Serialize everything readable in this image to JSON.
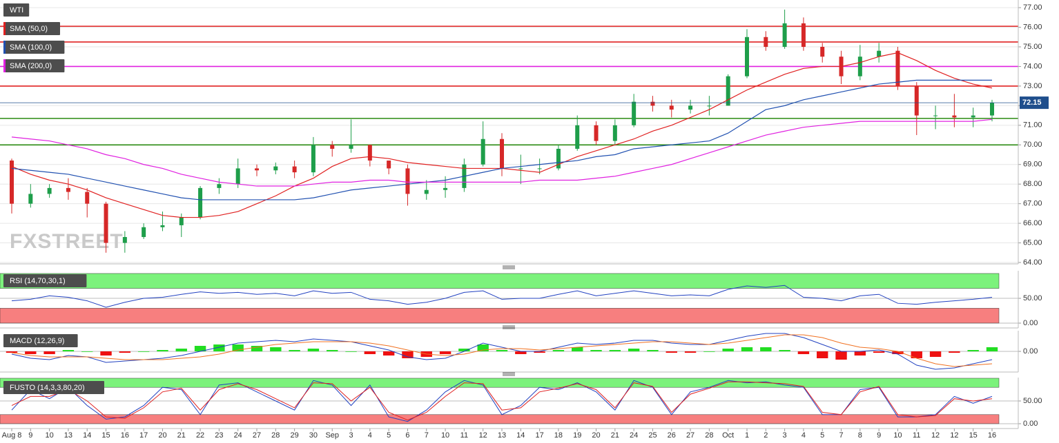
{
  "chart_data": [
    {
      "type": "candlestick",
      "title": "WTI",
      "watermark": "FXSTREET",
      "categories": [
        "Aug 8",
        "9",
        "10",
        "13",
        "14",
        "15",
        "16",
        "17",
        "20",
        "21",
        "22",
        "23",
        "24",
        "27",
        "28",
        "29",
        "30",
        "Sep",
        "3",
        "4",
        "5",
        "6",
        "7",
        "10",
        "11",
        "12",
        "13",
        "14",
        "17",
        "18",
        "19",
        "20",
        "21",
        "24",
        "25",
        "26",
        "27",
        "28",
        "Oct",
        "1",
        "2",
        "3",
        "4",
        "5",
        "7",
        "8",
        "9",
        "10",
        "11",
        "12",
        "12",
        "15",
        "16"
      ],
      "open": [
        69.2,
        67.0,
        67.5,
        67.8,
        67.6,
        67.0,
        65.0,
        65.3,
        65.8,
        65.9,
        66.3,
        67.8,
        68.0,
        68.8,
        68.7,
        68.9,
        68.6,
        70.0,
        69.8,
        70.0,
        69.2,
        68.8,
        67.5,
        67.7,
        67.8,
        69.0,
        70.3,
        68.8,
        68.8,
        68.8,
        69.8,
        71.0,
        70.2,
        71.0,
        72.2,
        72.0,
        71.8,
        72.0,
        72.0,
        73.5,
        75.5,
        75.0,
        76.2,
        75.0,
        74.5,
        73.5,
        74.5,
        74.8,
        73.0,
        71.5,
        71.5,
        71.4,
        71.5
      ],
      "high": [
        69.3,
        68.0,
        68.0,
        68.3,
        67.8,
        67.1,
        65.6,
        66.0,
        66.6,
        66.5,
        67.9,
        68.3,
        69.3,
        69.0,
        69.1,
        69.2,
        70.4,
        70.2,
        71.3,
        70.0,
        69.2,
        69.0,
        68.2,
        68.4,
        69.3,
        71.2,
        70.6,
        69.5,
        69.3,
        70.0,
        71.5,
        71.2,
        71.3,
        72.6,
        72.5,
        72.3,
        72.3,
        72.5,
        73.6,
        75.9,
        75.8,
        76.9,
        76.5,
        75.2,
        74.8,
        75.1,
        75.2,
        75.0,
        73.2,
        72.0,
        72.6,
        71.9,
        72.3
      ],
      "low": [
        66.5,
        66.8,
        67.3,
        67.2,
        66.3,
        64.5,
        64.5,
        65.2,
        65.6,
        65.3,
        66.2,
        67.5,
        67.8,
        68.4,
        68.5,
        68.3,
        68.4,
        69.4,
        69.6,
        68.9,
        68.5,
        66.9,
        67.2,
        67.3,
        67.6,
        68.9,
        68.4,
        68.0,
        68.5,
        68.7,
        69.7,
        70.0,
        70.0,
        70.9,
        71.7,
        71.4,
        71.6,
        71.5,
        72.0,
        73.4,
        74.8,
        74.9,
        74.8,
        74.2,
        73.1,
        73.3,
        74.2,
        72.8,
        70.5,
        70.8,
        70.9,
        70.9,
        71.2
      ],
      "close": [
        67.0,
        67.5,
        67.8,
        67.6,
        67.0,
        65.0,
        65.3,
        65.8,
        65.9,
        66.3,
        67.8,
        68.0,
        68.8,
        68.7,
        68.9,
        68.6,
        70.0,
        69.8,
        70.0,
        69.2,
        68.8,
        67.5,
        67.7,
        67.8,
        69.0,
        70.3,
        68.8,
        68.8,
        68.8,
        69.8,
        71.0,
        70.2,
        71.0,
        72.2,
        72.0,
        71.8,
        72.0,
        72.0,
        73.5,
        75.5,
        75.0,
        76.2,
        75.0,
        74.5,
        73.5,
        74.5,
        74.8,
        73.0,
        71.5,
        71.5,
        71.4,
        71.5,
        72.15
      ],
      "up_color": "#1e9e4a",
      "down_color": "#d62828",
      "series": [
        {
          "name": "SMA (50,0)",
          "color": "#e02020",
          "values": [
            68.9,
            68.5,
            68.2,
            68.0,
            67.7,
            67.3,
            67.0,
            66.7,
            66.4,
            66.3,
            66.3,
            66.4,
            66.6,
            67.0,
            67.4,
            67.9,
            68.3,
            68.9,
            69.3,
            69.4,
            69.3,
            69.1,
            69.0,
            68.9,
            68.8,
            68.8,
            68.8,
            68.7,
            68.6,
            69.0,
            69.4,
            69.7,
            70.0,
            70.3,
            70.7,
            71.0,
            71.4,
            71.8,
            72.3,
            72.8,
            73.2,
            73.6,
            73.9,
            74.0,
            74.0,
            74.2,
            74.5,
            74.7,
            74.3,
            73.8,
            73.4,
            73.1,
            72.9
          ]
        },
        {
          "name": "SMA (100,0)",
          "color": "#2050b0",
          "values": [
            68.8,
            68.7,
            68.6,
            68.5,
            68.3,
            68.1,
            67.9,
            67.7,
            67.5,
            67.3,
            67.2,
            67.2,
            67.2,
            67.2,
            67.2,
            67.2,
            67.3,
            67.5,
            67.7,
            67.8,
            67.9,
            68.0,
            68.1,
            68.2,
            68.4,
            68.6,
            68.8,
            68.9,
            69.0,
            69.1,
            69.2,
            69.4,
            69.5,
            69.8,
            69.9,
            70.0,
            70.1,
            70.2,
            70.6,
            71.2,
            71.8,
            72.0,
            72.3,
            72.5,
            72.7,
            72.9,
            73.1,
            73.2,
            73.3,
            73.3,
            73.3,
            73.3,
            73.3
          ]
        },
        {
          "name": "SMA (200,0)",
          "color": "#e020e0",
          "values": [
            70.4,
            70.3,
            70.2,
            70.0,
            69.8,
            69.5,
            69.3,
            69.0,
            68.8,
            68.5,
            68.3,
            68.1,
            68.0,
            67.9,
            67.9,
            67.9,
            68.0,
            68.1,
            68.1,
            68.2,
            68.2,
            68.1,
            68.1,
            68.1,
            68.1,
            68.1,
            68.1,
            68.1,
            68.2,
            68.2,
            68.2,
            68.3,
            68.4,
            68.6,
            68.8,
            69.0,
            69.3,
            69.6,
            69.9,
            70.2,
            70.5,
            70.7,
            70.9,
            71.0,
            71.1,
            71.2,
            71.2,
            71.2,
            71.2,
            71.2,
            71.2,
            71.2,
            71.3
          ]
        }
      ],
      "hlines": [
        {
          "value": 76.05,
          "color": "#e02020"
        },
        {
          "value": 75.25,
          "color": "#e02020"
        },
        {
          "value": 74.0,
          "color": "#e020e0"
        },
        {
          "value": 73.0,
          "color": "#e02020"
        },
        {
          "value": 71.35,
          "color": "#2a8a10"
        },
        {
          "value": 70.0,
          "color": "#2a8a10"
        }
      ],
      "last": 72.15,
      "last_color": "#1f4e8c",
      "ylim": [
        63.93,
        77.39
      ],
      "yticks": [
        {
          "value": 64,
          "label": "64.00"
        },
        {
          "value": 65,
          "label": "65.00"
        },
        {
          "value": 66,
          "label": "66.00"
        },
        {
          "value": 67,
          "label": "67.00"
        },
        {
          "value": 68,
          "label": "68.00"
        },
        {
          "value": 69,
          "label": "69.00"
        },
        {
          "value": 70,
          "label": "70.00"
        },
        {
          "value": 71,
          "label": "71.00"
        },
        {
          "value": 72,
          "label": "72.00"
        },
        {
          "value": 73,
          "label": "73.00"
        },
        {
          "value": 74,
          "label": "74.00"
        },
        {
          "value": 75,
          "label": "75.00"
        },
        {
          "value": 76,
          "label": "76.00"
        },
        {
          "value": 77,
          "label": "77.00"
        }
      ],
      "grid": true
    },
    {
      "type": "line",
      "title": "RSI (14,70,30,1)",
      "bands": [
        {
          "from": 70,
          "to": 100,
          "color": "#7cf27c"
        },
        {
          "from": 0,
          "to": 30,
          "color": "#f77f7f"
        }
      ],
      "series": [
        {
          "color": "#2040c0",
          "values": [
            45,
            48,
            55,
            52,
            45,
            32,
            42,
            50,
            52,
            58,
            63,
            60,
            62,
            58,
            60,
            55,
            65,
            60,
            62,
            48,
            45,
            38,
            42,
            50,
            62,
            65,
            48,
            50,
            50,
            58,
            65,
            55,
            60,
            65,
            60,
            55,
            57,
            55,
            68,
            75,
            72,
            76,
            52,
            50,
            45,
            55,
            58,
            40,
            38,
            42,
            45,
            48,
            52
          ]
        }
      ],
      "ylim": [
        -9.7,
        105.5
      ],
      "yticks": [
        {
          "value": 0,
          "label": "0.00"
        },
        {
          "value": 50,
          "label": "50.00"
        }
      ],
      "grid": true
    },
    {
      "type": "macd",
      "title": "MACD (12,26,9)",
      "histogram": {
        "up_color": "#22dd22",
        "down_color": "#ee1111",
        "values": [
          -0.1,
          -0.2,
          -0.2,
          0.1,
          0.0,
          -0.3,
          -0.1,
          0.0,
          0.1,
          0.2,
          0.4,
          0.5,
          0.5,
          0.4,
          0.3,
          0.1,
          0.2,
          0.1,
          0.0,
          -0.2,
          -0.3,
          -0.5,
          -0.4,
          -0.2,
          0.2,
          0.5,
          0.1,
          -0.2,
          -0.1,
          0.1,
          0.3,
          0.1,
          0.1,
          0.2,
          0.1,
          -0.1,
          -0.1,
          0.0,
          0.2,
          0.3,
          0.3,
          0.1,
          -0.2,
          -0.5,
          -0.6,
          -0.3,
          -0.1,
          -0.2,
          -0.5,
          -0.4,
          -0.1,
          0.1,
          0.3
        ]
      },
      "series": [
        {
          "color": "#2040c0",
          "values": [
            -0.2,
            -0.5,
            -0.6,
            -0.3,
            -0.4,
            -0.8,
            -0.7,
            -0.6,
            -0.5,
            -0.3,
            0.0,
            0.3,
            0.6,
            0.7,
            0.8,
            0.7,
            0.9,
            0.8,
            0.7,
            0.4,
            0.1,
            -0.4,
            -0.6,
            -0.5,
            0.0,
            0.6,
            0.3,
            0.0,
            0.0,
            0.3,
            0.6,
            0.5,
            0.6,
            0.8,
            0.8,
            0.6,
            0.5,
            0.5,
            0.8,
            1.1,
            1.3,
            1.3,
            1.0,
            0.5,
            0.0,
            0.0,
            0.1,
            -0.2,
            -1.0,
            -1.3,
            -1.2,
            -0.9,
            -0.6
          ]
        },
        {
          "color": "#f07020",
          "values": [
            -0.1,
            -0.3,
            -0.4,
            -0.4,
            -0.4,
            -0.5,
            -0.6,
            -0.6,
            -0.6,
            -0.5,
            -0.4,
            -0.2,
            0.1,
            0.3,
            0.5,
            0.6,
            0.7,
            0.7,
            0.7,
            0.6,
            0.4,
            0.1,
            -0.2,
            -0.3,
            -0.2,
            0.1,
            0.2,
            0.2,
            0.1,
            0.2,
            0.3,
            0.4,
            0.5,
            0.6,
            0.7,
            0.7,
            0.6,
            0.5,
            0.6,
            0.8,
            1.0,
            1.2,
            1.2,
            1.0,
            0.6,
            0.3,
            0.2,
            0.0,
            -0.5,
            -0.9,
            -1.1,
            -1.0,
            -0.9
          ]
        }
      ],
      "ylim": [
        -1.5,
        1.5
      ],
      "yticks": [
        {
          "value": 0,
          "label": "0.00"
        }
      ],
      "grid": true
    },
    {
      "type": "line",
      "title": "FUSTO (14,3,3,80,20)",
      "bands": [
        {
          "from": 80,
          "to": 100,
          "color": "#7cf27c"
        },
        {
          "from": 0,
          "to": 20,
          "color": "#f77f7f"
        }
      ],
      "series": [
        {
          "color": "#2040c0",
          "values": [
            30,
            75,
            55,
            80,
            40,
            10,
            15,
            40,
            80,
            75,
            20,
            85,
            90,
            70,
            50,
            30,
            95,
            85,
            40,
            85,
            15,
            5,
            30,
            70,
            95,
            85,
            20,
            40,
            80,
            75,
            90,
            70,
            30,
            95,
            80,
            20,
            70,
            80,
            95,
            90,
            92,
            85,
            80,
            20,
            20,
            75,
            80,
            15,
            15,
            20,
            60,
            45,
            60
          ]
        },
        {
          "color": "#e02020",
          "values": [
            40,
            60,
            60,
            75,
            50,
            15,
            12,
            35,
            70,
            78,
            30,
            75,
            88,
            75,
            55,
            35,
            90,
            88,
            50,
            80,
            25,
            8,
            25,
            60,
            90,
            88,
            30,
            35,
            70,
            78,
            88,
            75,
            35,
            90,
            82,
            25,
            65,
            78,
            92,
            92,
            90,
            88,
            82,
            25,
            20,
            70,
            82,
            20,
            15,
            18,
            55,
            50,
            55
          ]
        }
      ],
      "ylim": [
        -10.6,
        101.5
      ],
      "yticks": [
        {
          "value": 0,
          "label": "0.00"
        },
        {
          "value": 50,
          "label": "50.00"
        }
      ],
      "grid": true
    }
  ]
}
